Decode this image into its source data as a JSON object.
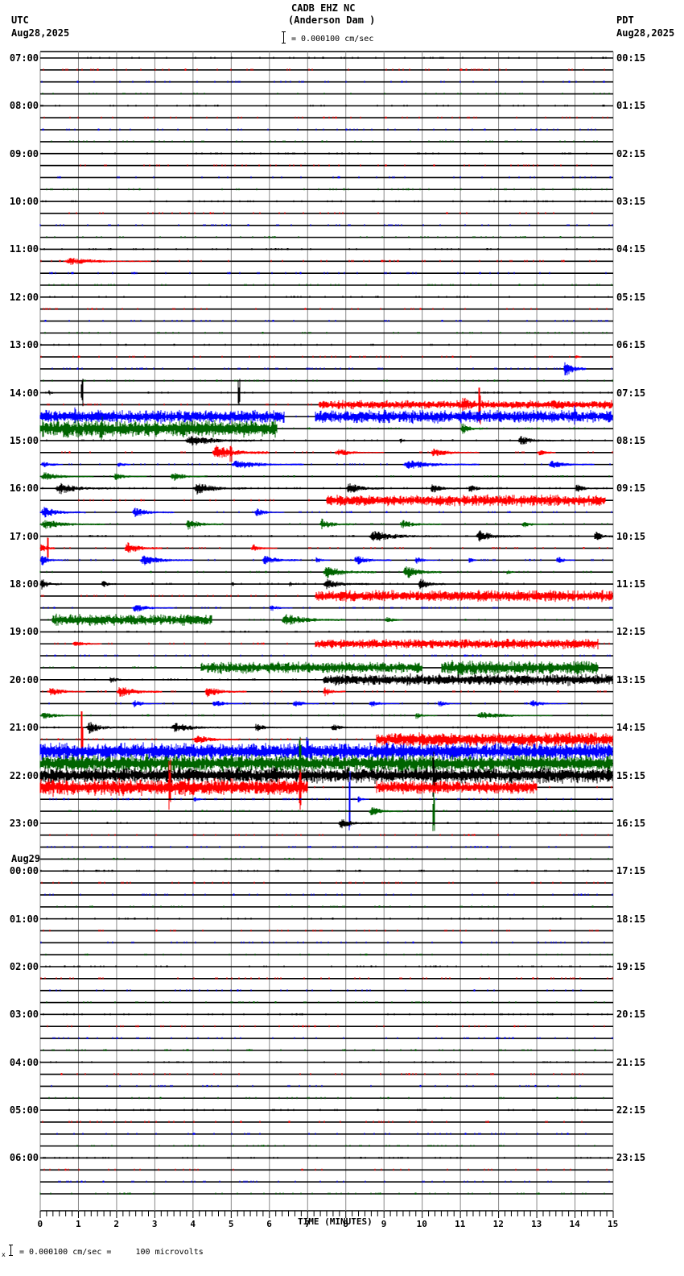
{
  "header": {
    "station": "CADB EHZ NC",
    "location": "(Anderson Dam )",
    "scale_text": "= 0.000100 cm/sec",
    "left_tz": "UTC",
    "left_date": "Aug28,2025",
    "right_tz": "PDT",
    "right_date": "Aug28,2025"
  },
  "footer": {
    "scale_prefix": "x",
    "scale_text": "= 0.000100 cm/sec =     100 microvolts"
  },
  "chart_data": {
    "type": "line",
    "title": "CADB EHZ NC (Anderson Dam ) helicorder",
    "xlabel": "TIME (MINUTES)",
    "ylabel": "",
    "x_ticks": [
      "0",
      "1",
      "2",
      "3",
      "4",
      "5",
      "6",
      "7",
      "8",
      "9",
      "10",
      "11",
      "12",
      "13",
      "14",
      "15"
    ],
    "xlim": [
      0,
      15
    ],
    "minor_ticks_per_minute": 6,
    "traces_per_hour": 4,
    "trace_count": 96,
    "trace_colors": [
      "#000000",
      "#ff0000",
      "#0000ff",
      "#006400"
    ],
    "left_labels": [
      {
        "trace": 0,
        "text": "07:00"
      },
      {
        "trace": 4,
        "text": "08:00"
      },
      {
        "trace": 8,
        "text": "09:00"
      },
      {
        "trace": 12,
        "text": "10:00"
      },
      {
        "trace": 16,
        "text": "11:00"
      },
      {
        "trace": 20,
        "text": "12:00"
      },
      {
        "trace": 24,
        "text": "13:00"
      },
      {
        "trace": 28,
        "text": "14:00"
      },
      {
        "trace": 32,
        "text": "15:00"
      },
      {
        "trace": 36,
        "text": "16:00"
      },
      {
        "trace": 40,
        "text": "17:00"
      },
      {
        "trace": 44,
        "text": "18:00"
      },
      {
        "trace": 48,
        "text": "19:00"
      },
      {
        "trace": 52,
        "text": "20:00"
      },
      {
        "trace": 56,
        "text": "21:00"
      },
      {
        "trace": 60,
        "text": "22:00"
      },
      {
        "trace": 64,
        "text": "23:00"
      },
      {
        "trace": 68,
        "text": "00:00",
        "date": "Aug29"
      },
      {
        "trace": 72,
        "text": "01:00"
      },
      {
        "trace": 76,
        "text": "02:00"
      },
      {
        "trace": 80,
        "text": "03:00"
      },
      {
        "trace": 84,
        "text": "04:00"
      },
      {
        "trace": 88,
        "text": "05:00"
      },
      {
        "trace": 92,
        "text": "06:00"
      }
    ],
    "right_labels": [
      {
        "trace": 0,
        "text": "00:15"
      },
      {
        "trace": 4,
        "text": "01:15"
      },
      {
        "trace": 8,
        "text": "02:15"
      },
      {
        "trace": 12,
        "text": "03:15"
      },
      {
        "trace": 16,
        "text": "04:15"
      },
      {
        "trace": 20,
        "text": "05:15"
      },
      {
        "trace": 24,
        "text": "06:15"
      },
      {
        "trace": 28,
        "text": "07:15"
      },
      {
        "trace": 32,
        "text": "08:15"
      },
      {
        "trace": 36,
        "text": "09:15"
      },
      {
        "trace": 40,
        "text": "10:15"
      },
      {
        "trace": 44,
        "text": "11:15"
      },
      {
        "trace": 48,
        "text": "12:15"
      },
      {
        "trace": 52,
        "text": "13:15"
      },
      {
        "trace": 56,
        "text": "14:15"
      },
      {
        "trace": 60,
        "text": "15:15"
      },
      {
        "trace": 64,
        "text": "16:15"
      },
      {
        "trace": 68,
        "text": "17:15"
      },
      {
        "trace": 72,
        "text": "18:15"
      },
      {
        "trace": 76,
        "text": "19:15"
      },
      {
        "trace": 80,
        "text": "20:15"
      },
      {
        "trace": 84,
        "text": "21:15"
      },
      {
        "trace": 88,
        "text": "22:15"
      },
      {
        "trace": 92,
        "text": "23:15"
      }
    ],
    "events": [
      {
        "trace": 17,
        "start": 0.6,
        "end": 2.9,
        "amp": 6
      },
      {
        "trace": 25,
        "start": 14.0,
        "end": 14.3,
        "amp": 4
      },
      {
        "trace": 26,
        "start": 13.7,
        "end": 14.3,
        "amp": 14
      },
      {
        "trace": 28,
        "start": 0.2,
        "end": 0.5,
        "amp": 5
      },
      {
        "trace": 29,
        "start": 7.3,
        "end": 15,
        "amp": 6
      },
      {
        "trace": 29,
        "start": 11.0,
        "end": 11.8,
        "amp": 14
      },
      {
        "trace": 29,
        "start": 13.4,
        "end": 14.1,
        "amp": 10
      },
      {
        "trace": 30,
        "start": 0,
        "end": 6.4,
        "amp": 9
      },
      {
        "trace": 30,
        "start": 7.2,
        "end": 15,
        "amp": 9
      },
      {
        "trace": 31,
        "start": 0,
        "end": 6.2,
        "amp": 12
      },
      {
        "trace": 31,
        "start": 11.0,
        "end": 11.6,
        "amp": 10
      },
      {
        "trace": 32,
        "start": 3.8,
        "end": 5.6,
        "amp": 10
      },
      {
        "trace": 32,
        "start": 9.4,
        "end": 9.7,
        "amp": 5
      },
      {
        "trace": 32,
        "start": 12.5,
        "end": 13.5,
        "amp": 8
      },
      {
        "trace": 33,
        "start": 4.5,
        "end": 6.0,
        "amp": 12
      },
      {
        "trace": 33,
        "start": 7.7,
        "end": 9.0,
        "amp": 6
      },
      {
        "trace": 33,
        "start": 10.2,
        "end": 11.5,
        "amp": 7
      },
      {
        "trace": 33,
        "start": 13.0,
        "end": 13.8,
        "amp": 5
      },
      {
        "trace": 34,
        "start": 0,
        "end": 1.0,
        "amp": 5
      },
      {
        "trace": 34,
        "start": 2.0,
        "end": 2.6,
        "amp": 5
      },
      {
        "trace": 34,
        "start": 5.0,
        "end": 6.9,
        "amp": 8
      },
      {
        "trace": 34,
        "start": 9.5,
        "end": 11.5,
        "amp": 8
      },
      {
        "trace": 34,
        "start": 13.3,
        "end": 14.5,
        "amp": 7
      },
      {
        "trace": 35,
        "start": 0,
        "end": 1.4,
        "amp": 7
      },
      {
        "trace": 35,
        "start": 1.9,
        "end": 2.8,
        "amp": 6
      },
      {
        "trace": 35,
        "start": 3.4,
        "end": 4.3,
        "amp": 8
      },
      {
        "trace": 36,
        "start": 0.4,
        "end": 1.8,
        "amp": 10
      },
      {
        "trace": 36,
        "start": 4.0,
        "end": 5.4,
        "amp": 10
      },
      {
        "trace": 36,
        "start": 8.0,
        "end": 9.0,
        "amp": 10
      },
      {
        "trace": 36,
        "start": 10.2,
        "end": 11.0,
        "amp": 8
      },
      {
        "trace": 36,
        "start": 11.2,
        "end": 11.8,
        "amp": 8
      },
      {
        "trace": 36,
        "start": 14.0,
        "end": 14.6,
        "amp": 8
      },
      {
        "trace": 37,
        "start": 7.5,
        "end": 14.8,
        "amp": 8
      },
      {
        "trace": 38,
        "start": 0,
        "end": 1.2,
        "amp": 9
      },
      {
        "trace": 38,
        "start": 2.4,
        "end": 3.5,
        "amp": 8
      },
      {
        "trace": 38,
        "start": 5.6,
        "end": 6.4,
        "amp": 7
      },
      {
        "trace": 39,
        "start": 0,
        "end": 1.7,
        "amp": 8
      },
      {
        "trace": 39,
        "start": 3.8,
        "end": 4.8,
        "amp": 9
      },
      {
        "trace": 39,
        "start": 7.3,
        "end": 8.2,
        "amp": 9
      },
      {
        "trace": 39,
        "start": 9.4,
        "end": 10.5,
        "amp": 7
      },
      {
        "trace": 39,
        "start": 12.6,
        "end": 13.3,
        "amp": 6
      },
      {
        "trace": 40,
        "start": 8.6,
        "end": 10.5,
        "amp": 9
      },
      {
        "trace": 40,
        "start": 11.4,
        "end": 12.6,
        "amp": 10
      },
      {
        "trace": 40,
        "start": 14.5,
        "end": 15,
        "amp": 10
      },
      {
        "trace": 41,
        "start": 0,
        "end": 0.4,
        "amp": 10
      },
      {
        "trace": 41,
        "start": 2.2,
        "end": 3.2,
        "amp": 10
      },
      {
        "trace": 41,
        "start": 5.5,
        "end": 6.2,
        "amp": 7
      },
      {
        "trace": 42,
        "start": 0,
        "end": 0.6,
        "amp": 9
      },
      {
        "trace": 42,
        "start": 2.6,
        "end": 4.0,
        "amp": 9
      },
      {
        "trace": 42,
        "start": 5.8,
        "end": 6.8,
        "amp": 9
      },
      {
        "trace": 42,
        "start": 7.2,
        "end": 7.6,
        "amp": 6
      },
      {
        "trace": 42,
        "start": 8.2,
        "end": 9.2,
        "amp": 8
      },
      {
        "trace": 42,
        "start": 9.8,
        "end": 10.4,
        "amp": 6
      },
      {
        "trace": 42,
        "start": 11.2,
        "end": 11.6,
        "amp": 5
      },
      {
        "trace": 42,
        "start": 13.5,
        "end": 14.0,
        "amp": 7
      },
      {
        "trace": 43,
        "start": 7.4,
        "end": 8.8,
        "amp": 10
      },
      {
        "trace": 43,
        "start": 9.5,
        "end": 10.5,
        "amp": 12
      },
      {
        "trace": 43,
        "start": 12.2,
        "end": 12.6,
        "amp": 5
      },
      {
        "trace": 44,
        "start": 0,
        "end": 0.5,
        "amp": 10
      },
      {
        "trace": 44,
        "start": 1.6,
        "end": 2.0,
        "amp": 8
      },
      {
        "trace": 44,
        "start": 5.0,
        "end": 5.3,
        "amp": 4
      },
      {
        "trace": 44,
        "start": 6.5,
        "end": 6.8,
        "amp": 5
      },
      {
        "trace": 44,
        "start": 7.4,
        "end": 8.6,
        "amp": 9
      },
      {
        "trace": 44,
        "start": 9.9,
        "end": 10.6,
        "amp": 10
      },
      {
        "trace": 45,
        "start": 7.2,
        "end": 15,
        "amp": 8
      },
      {
        "trace": 46,
        "start": 2.4,
        "end": 3.5,
        "amp": 7
      },
      {
        "trace": 46,
        "start": 6.0,
        "end": 6.6,
        "amp": 6
      },
      {
        "trace": 47,
        "start": 0.3,
        "end": 4.5,
        "amp": 8
      },
      {
        "trace": 47,
        "start": 6.3,
        "end": 8.0,
        "amp": 10
      },
      {
        "trace": 47,
        "start": 9.0,
        "end": 9.8,
        "amp": 5
      },
      {
        "trace": 49,
        "start": 0.8,
        "end": 2.3,
        "amp": 4
      },
      {
        "trace": 49,
        "start": 7.2,
        "end": 14.6,
        "amp": 7
      },
      {
        "trace": 51,
        "start": 4.2,
        "end": 10.0,
        "amp": 8
      },
      {
        "trace": 51,
        "start": 10.5,
        "end": 14.6,
        "amp": 10
      },
      {
        "trace": 52,
        "start": 1.8,
        "end": 2.4,
        "amp": 6
      },
      {
        "trace": 52,
        "start": 7.4,
        "end": 15,
        "amp": 8
      },
      {
        "trace": 53,
        "start": 0.2,
        "end": 1.2,
        "amp": 8
      },
      {
        "trace": 53,
        "start": 2.0,
        "end": 3.2,
        "amp": 10
      },
      {
        "trace": 53,
        "start": 4.3,
        "end": 5.4,
        "amp": 9
      },
      {
        "trace": 53,
        "start": 7.4,
        "end": 8.0,
        "amp": 8
      },
      {
        "trace": 54,
        "start": 2.4,
        "end": 3.2,
        "amp": 6
      },
      {
        "trace": 54,
        "start": 4.5,
        "end": 5.3,
        "amp": 7
      },
      {
        "trace": 54,
        "start": 6.6,
        "end": 7.3,
        "amp": 7
      },
      {
        "trace": 54,
        "start": 8.6,
        "end": 9.4,
        "amp": 6
      },
      {
        "trace": 54,
        "start": 10.4,
        "end": 11.0,
        "amp": 6
      },
      {
        "trace": 54,
        "start": 12.8,
        "end": 13.8,
        "amp": 6
      },
      {
        "trace": 55,
        "start": 0,
        "end": 1.2,
        "amp": 6
      },
      {
        "trace": 55,
        "start": 9.8,
        "end": 10.4,
        "amp": 6
      },
      {
        "trace": 55,
        "start": 11.4,
        "end": 13.4,
        "amp": 6
      },
      {
        "trace": 56,
        "start": 1.2,
        "end": 2.2,
        "amp": 10
      },
      {
        "trace": 56,
        "start": 3.4,
        "end": 5.0,
        "amp": 8
      },
      {
        "trace": 56,
        "start": 5.6,
        "end": 6.3,
        "amp": 7
      },
      {
        "trace": 56,
        "start": 7.6,
        "end": 8.4,
        "amp": 6
      },
      {
        "trace": 57,
        "start": 4.0,
        "end": 5.2,
        "amp": 8
      },
      {
        "trace": 57,
        "start": 8.8,
        "end": 15,
        "amp": 10
      },
      {
        "trace": 58,
        "start": 0,
        "end": 15,
        "amp": 12
      },
      {
        "trace": 59,
        "start": 0,
        "end": 15,
        "amp": 12
      },
      {
        "trace": 60,
        "start": 0,
        "end": 15,
        "amp": 11
      },
      {
        "trace": 61,
        "start": 0,
        "end": 7.0,
        "amp": 12
      },
      {
        "trace": 61,
        "start": 8.8,
        "end": 13.0,
        "amp": 9
      },
      {
        "trace": 62,
        "start": 4.0,
        "end": 4.5,
        "amp": 4
      },
      {
        "trace": 62,
        "start": 8.3,
        "end": 8.6,
        "amp": 6
      },
      {
        "trace": 63,
        "start": 8.6,
        "end": 9.5,
        "amp": 8
      },
      {
        "trace": 64,
        "start": 7.8,
        "end": 8.7,
        "amp": 9
      }
    ],
    "spikes": [
      {
        "trace": 28,
        "x": 1.1,
        "amp": 20
      },
      {
        "trace": 28,
        "x": 5.2,
        "amp": 20
      },
      {
        "trace": 30,
        "x": 0.9,
        "amp": 12
      },
      {
        "trace": 30,
        "x": 14.0,
        "amp": 16
      },
      {
        "trace": 29,
        "x": 11.5,
        "amp": 25
      },
      {
        "trace": 31,
        "x": 1.6,
        "amp": 18
      },
      {
        "trace": 33,
        "x": 5.0,
        "amp": 12
      },
      {
        "trace": 41,
        "x": 0.2,
        "amp": 15
      },
      {
        "trace": 57,
        "x": 1.1,
        "amp": 40
      },
      {
        "trace": 58,
        "x": 7.0,
        "amp": 25
      },
      {
        "trace": 59,
        "x": 6.8,
        "amp": 35
      },
      {
        "trace": 60,
        "x": 10.3,
        "amp": 35
      },
      {
        "trace": 61,
        "x": 3.4,
        "amp": 40
      },
      {
        "trace": 61,
        "x": 6.8,
        "amp": 30
      },
      {
        "trace": 62,
        "x": 8.1,
        "amp": 40
      },
      {
        "trace": 63,
        "x": 10.3,
        "amp": 25
      }
    ]
  }
}
